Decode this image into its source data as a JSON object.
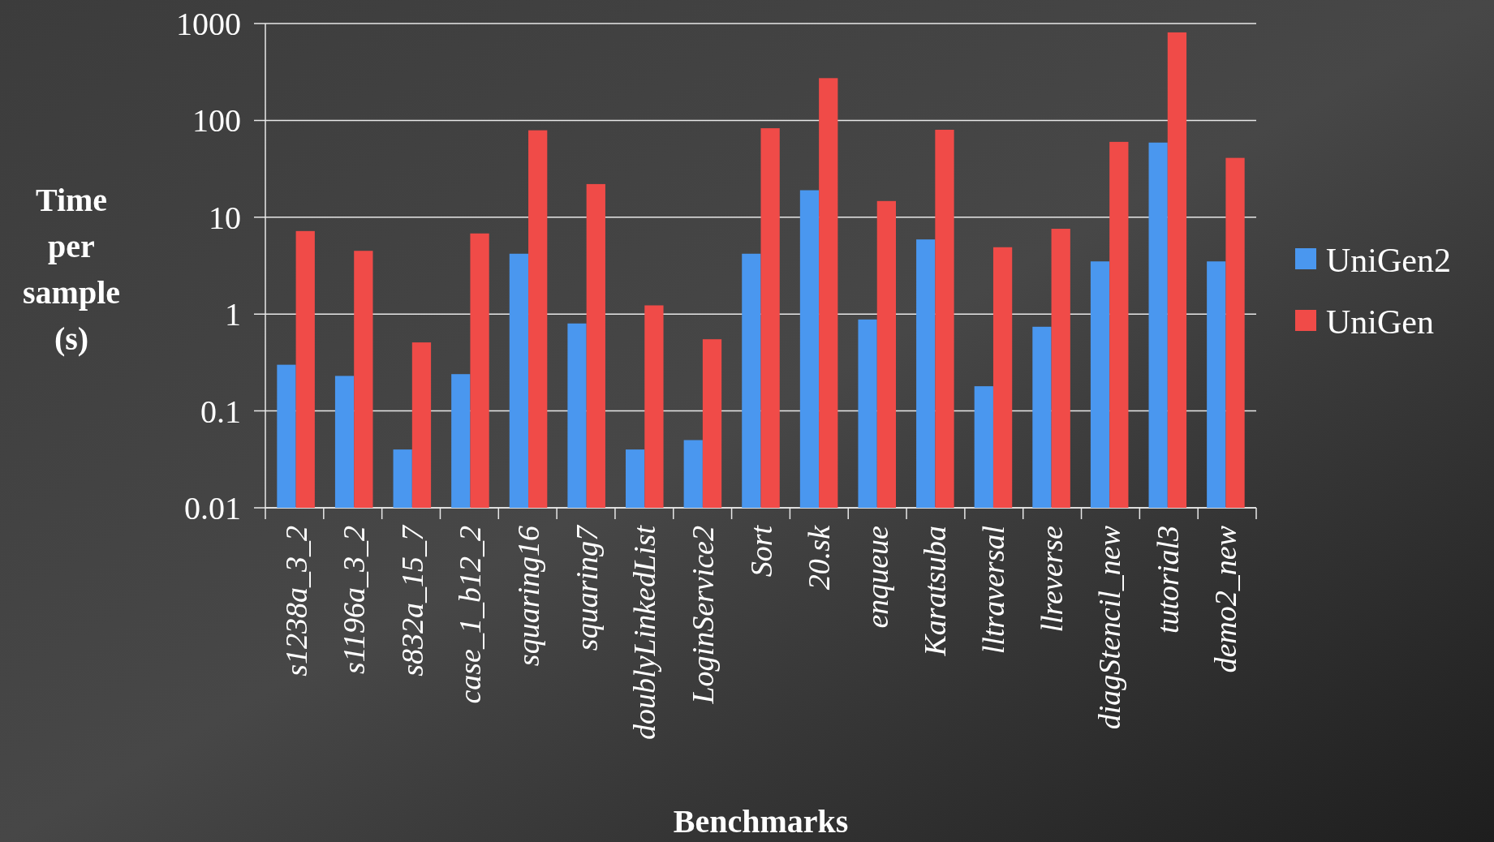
{
  "chart_data": {
    "type": "bar",
    "xlabel": "Benchmarks",
    "ylabel": "Time per sample (s)",
    "log": true,
    "grid": "y",
    "legend": "right",
    "categories": [
      "s1238a_3_2",
      "s1196a_3_2",
      "s832a_15_7",
      "case_1_b12_2",
      "squaring16",
      "squaring7",
      "doublyLinkedList",
      "LoginService2",
      "Sort",
      "20.sk",
      "enqueue",
      "Karatsuba",
      "lltraversal",
      "llreverse",
      "diagStencil_new",
      "tutorial3",
      "demo2_new"
    ],
    "ylim": [
      0.01,
      1000
    ],
    "yticks": [
      0.01,
      0.1,
      1,
      10,
      100,
      1000
    ],
    "series": [
      {
        "name": "UniGen2",
        "color": "#4a97ef",
        "values": [
          0.3,
          0.23,
          0.04,
          0.24,
          4.2,
          0.8,
          0.04,
          0.05,
          4.2,
          19,
          0.88,
          5.9,
          0.18,
          0.74,
          3.5,
          59,
          3.5
        ]
      },
      {
        "name": "UniGen",
        "color": "#f04b48",
        "values": [
          7.2,
          4.5,
          0.51,
          6.8,
          79,
          22,
          1.23,
          0.55,
          83,
          273,
          14.7,
          80,
          4.9,
          7.6,
          60,
          810,
          41
        ]
      }
    ]
  }
}
